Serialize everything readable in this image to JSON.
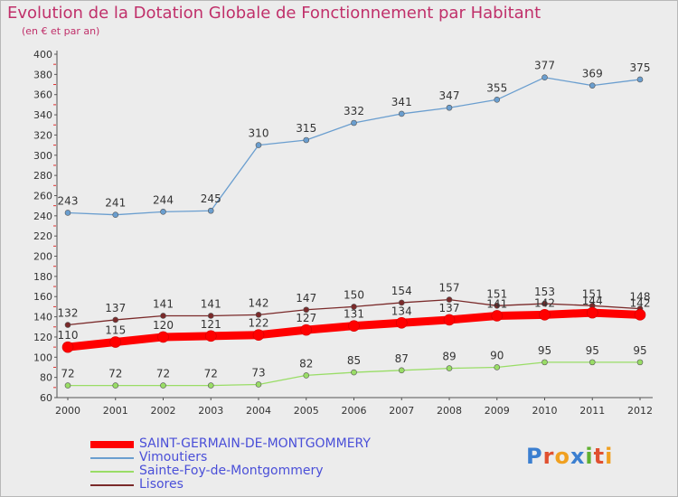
{
  "header": {
    "title": "Evolution de la Dotation Globale de Fonctionnement par Habitant",
    "subtitle": "(en € et par an)"
  },
  "logo": {
    "text": "Proxiti"
  },
  "chart_data": {
    "type": "line",
    "x": [
      "2000",
      "2001",
      "2002",
      "2003",
      "2004",
      "2005",
      "2006",
      "2007",
      "2008",
      "2009",
      "2010",
      "2011",
      "2012"
    ],
    "ylim": [
      60,
      400
    ],
    "yticks": [
      60,
      80,
      100,
      120,
      140,
      160,
      180,
      200,
      220,
      240,
      260,
      280,
      300,
      320,
      340,
      360,
      380,
      400
    ],
    "grid": false,
    "legend_position": "bottom-left",
    "series": [
      {
        "name": "SAINT-GERMAIN-DE-MONTGOMMERY",
        "color": "#ff0000",
        "values": [
          110,
          115,
          120,
          121,
          122,
          127,
          131,
          134,
          137,
          141,
          142,
          144,
          142
        ]
      },
      {
        "name": "Vimoutiers",
        "color": "#6a9ecf",
        "values": [
          243,
          241,
          244,
          245,
          310,
          315,
          332,
          341,
          347,
          355,
          377,
          369,
          375
        ]
      },
      {
        "name": "Sainte-Foy-de-Montgommery",
        "color": "#99dd66",
        "values": [
          72,
          72,
          72,
          72,
          73,
          82,
          85,
          87,
          89,
          90,
          95,
          95,
          95
        ]
      },
      {
        "name": "Lisores",
        "color": "#7a2a2a",
        "values": [
          132,
          137,
          141,
          141,
          142,
          147,
          150,
          154,
          157,
          151,
          153,
          151,
          148
        ]
      }
    ]
  }
}
